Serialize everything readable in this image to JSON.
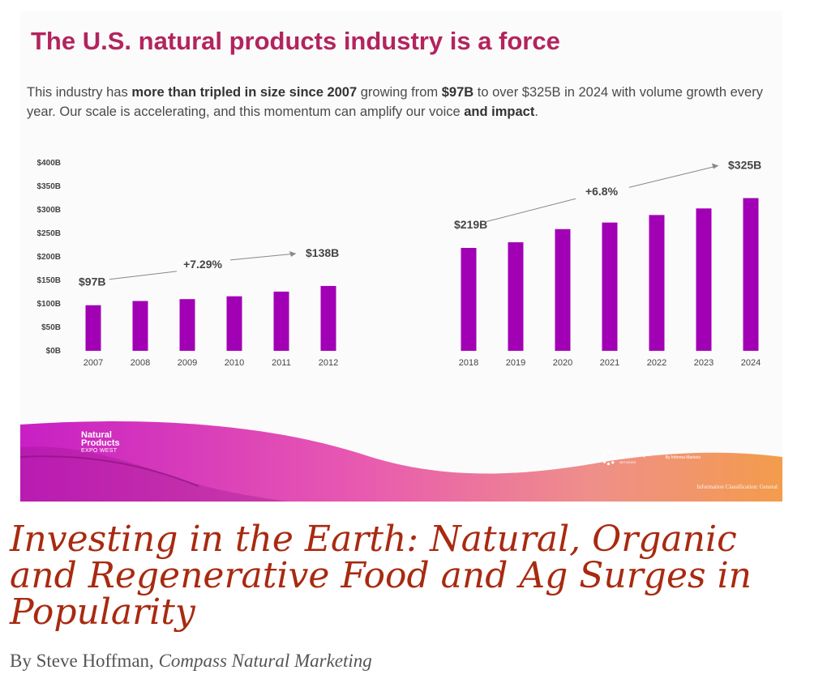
{
  "slide": {
    "title": "The U.S. natural products industry is a force",
    "body_parts": [
      {
        "text": "This industry has ",
        "bold": false
      },
      {
        "text": "more than tripled in size since 2007",
        "bold": true
      },
      {
        "text": " growing from ",
        "bold": false
      },
      {
        "text": "$97B",
        "bold": true
      },
      {
        "text": " to over $325B   in 2024 with volume growth every year.  Our scale is accelerating, and this momentum can amplify our voice ",
        "bold": false
      },
      {
        "text": "and impact",
        "bold": true
      },
      {
        "text": ".",
        "bold": false
      }
    ],
    "footer": {
      "expo_logo": [
        "Natural",
        "Products",
        "EXPO WEST"
      ],
      "partner_logo": "New Hope",
      "partner_sub": "NETWORK",
      "partner_by": "By Informa Markets",
      "classification": "Information Classification: General"
    }
  },
  "chart_data": {
    "type": "bar",
    "ylim": [
      0,
      400
    ],
    "yticks": [
      "$0B",
      "$50B",
      "$100B",
      "$150B",
      "$200B",
      "$250B",
      "$300B",
      "$350B",
      "$400B"
    ],
    "bar_color": "#a100b5",
    "groups": [
      {
        "categories": [
          "2007",
          "2008",
          "2009",
          "2010",
          "2011",
          "2012"
        ],
        "values": [
          97,
          106,
          110,
          116,
          126,
          138
        ],
        "start_label": "$97B",
        "end_label": "$138B",
        "growth_label": "+7.29%"
      },
      {
        "categories": [
          "2018",
          "2019",
          "2020",
          "2021",
          "2022",
          "2023",
          "2024"
        ],
        "values": [
          219,
          231,
          259,
          273,
          289,
          303,
          325
        ],
        "start_label": "$219B",
        "end_label": "$325B",
        "growth_label": "+6.8%"
      }
    ]
  },
  "article": {
    "title": "Investing in the Earth: Natural, Organic and Regenerative Food and Ag Surges in Popularity",
    "byline_prefix": "By Steve Hoffman, ",
    "byline_org": "Compass Natural Marketing"
  }
}
